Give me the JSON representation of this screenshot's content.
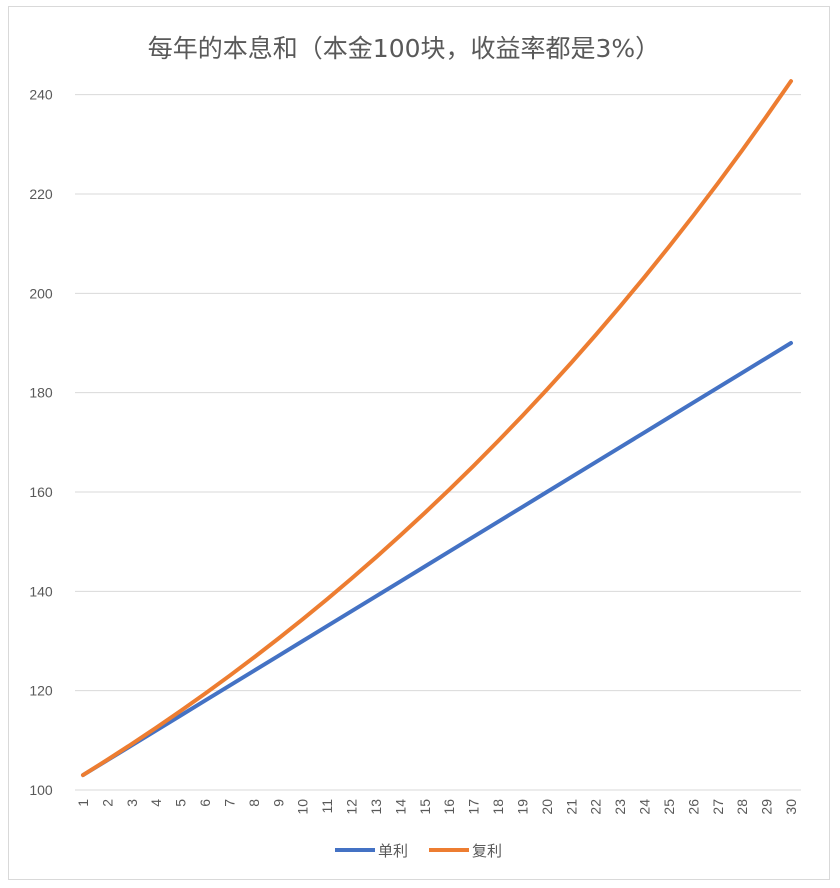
{
  "chart_data": {
    "type": "line",
    "title": "每年的本息和（本金100块，收益率都是3%）",
    "xlabel": "",
    "ylabel": "",
    "categories": [
      "1",
      "2",
      "3",
      "4",
      "5",
      "6",
      "7",
      "8",
      "9",
      "10",
      "11",
      "12",
      "13",
      "14",
      "15",
      "16",
      "17",
      "18",
      "19",
      "20",
      "21",
      "22",
      "23",
      "24",
      "25",
      "26",
      "27",
      "28",
      "29",
      "30"
    ],
    "ylim": [
      100,
      250
    ],
    "yticks": [
      100,
      120,
      140,
      160,
      180,
      200,
      220,
      240
    ],
    "grid": true,
    "legend": "bottom",
    "series": [
      {
        "name": "单利",
        "color": "#4472C4",
        "values": [
          103,
          106,
          109,
          112,
          115,
          118,
          121,
          124,
          127,
          130,
          133,
          136,
          139,
          142,
          145,
          148,
          151,
          154,
          157,
          160,
          163,
          166,
          169,
          172,
          175,
          178,
          181,
          184,
          187,
          190
        ]
      },
      {
        "name": "复利",
        "color": "#ED7D31",
        "values": [
          103,
          106.09,
          109.27,
          112.55,
          115.93,
          119.41,
          122.99,
          126.68,
          130.48,
          134.39,
          138.42,
          142.58,
          146.85,
          151.26,
          155.8,
          160.47,
          165.28,
          170.24,
          175.35,
          180.61,
          186.03,
          191.61,
          197.36,
          203.28,
          209.38,
          215.66,
          222.13,
          228.8,
          235.66,
          242.73
        ]
      }
    ]
  }
}
